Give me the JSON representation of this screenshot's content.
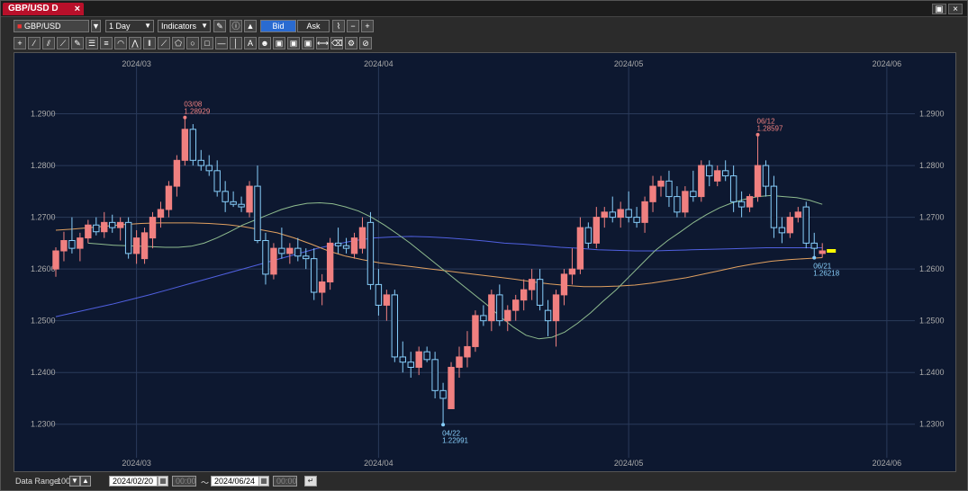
{
  "window": {
    "tab_title": "GBP/USD D",
    "tab_close": "×",
    "btn_restore": "▣",
    "btn_close": "×"
  },
  "toolbar": {
    "symbol": "GBP/USD",
    "timeframe": "1 Day",
    "indicators": "Indicators",
    "bid": "Bid",
    "ask": "Ask"
  },
  "drawing_tools": [
    "crosshair-icon",
    "trendline-icon",
    "channel-icon",
    "ray-icon",
    "pencil-icon",
    "horizontal-lines-icon",
    "fib-lines-icon",
    "arc-icon",
    "pitchfork-icon",
    "vertical-lines-icon",
    "fan-icon",
    "pentagon-icon",
    "circle-icon",
    "rectangle-icon",
    "hline-icon",
    "vline-icon",
    "text-icon",
    "symbol-icon",
    "lock-icon",
    "copy-icon",
    "paste-icon",
    "measure-icon",
    "eraser-icon",
    "settings-icon",
    "delete-icon"
  ],
  "chart": {
    "x_labels": [
      {
        "text": "2024/03",
        "day": 10
      },
      {
        "text": "2024/04",
        "day": 40
      },
      {
        "text": "2024/05",
        "day": 71
      },
      {
        "text": "2024/06",
        "day": 103
      }
    ],
    "y_ticks": [
      "1.2900",
      "1.2800",
      "1.2700",
      "1.2600",
      "1.2500",
      "1.2400",
      "1.2300"
    ],
    "annotations": [
      {
        "date": "03/08",
        "price": "1.28929"
      },
      {
        "date": "06/12",
        "price": "1.28597"
      },
      {
        "date": "04/22",
        "price": "1.22991"
      },
      {
        "date": "06/21",
        "price": "1.26218"
      }
    ],
    "colors": {
      "up": "#f08080",
      "down": "#87cefa",
      "ma_short": "#8fbc8f",
      "ma_mid": "#e0a060",
      "ma_long": "#5060e0",
      "current": "#ffff00"
    }
  },
  "chart_data": {
    "type": "candlestick",
    "ylim": [
      1.227,
      1.3
    ],
    "candles": [
      [
        1.26,
        1.2642,
        1.2585,
        1.2635
      ],
      [
        1.2635,
        1.2672,
        1.2615,
        1.2655
      ],
      [
        1.2655,
        1.27,
        1.263,
        1.264
      ],
      [
        1.264,
        1.267,
        1.2615,
        1.266
      ],
      [
        1.266,
        1.2695,
        1.265,
        1.2685
      ],
      [
        1.2685,
        1.27,
        1.2665,
        1.2672
      ],
      [
        1.2672,
        1.271,
        1.266,
        1.269
      ],
      [
        1.269,
        1.2705,
        1.267,
        1.268
      ],
      [
        1.268,
        1.27,
        1.2655,
        1.269
      ],
      [
        1.269,
        1.27,
        1.262,
        1.263
      ],
      [
        1.263,
        1.2675,
        1.261,
        1.266
      ],
      [
        1.262,
        1.268,
        1.261,
        1.267
      ],
      [
        1.266,
        1.271,
        1.264,
        1.27
      ],
      [
        1.27,
        1.273,
        1.268,
        1.2715
      ],
      [
        1.2715,
        1.277,
        1.27,
        1.276
      ],
      [
        1.276,
        1.282,
        1.274,
        1.281
      ],
      [
        1.281,
        1.2893,
        1.28,
        1.287
      ],
      [
        1.287,
        1.288,
        1.28,
        1.281
      ],
      [
        1.281,
        1.283,
        1.279,
        1.28
      ],
      [
        1.28,
        1.282,
        1.278,
        1.279
      ],
      [
        1.279,
        1.281,
        1.274,
        1.275
      ],
      [
        1.275,
        1.277,
        1.271,
        1.273
      ],
      [
        1.273,
        1.275,
        1.272,
        1.2725
      ],
      [
        1.2725,
        1.274,
        1.271,
        1.272
      ],
      [
        1.271,
        1.277,
        1.27,
        1.276
      ],
      [
        1.276,
        1.28,
        1.265,
        1.2655
      ],
      [
        1.2655,
        1.267,
        1.257,
        1.259
      ],
      [
        1.259,
        1.265,
        1.258,
        1.264
      ],
      [
        1.264,
        1.268,
        1.262,
        1.263
      ],
      [
        1.263,
        1.265,
        1.261,
        1.264
      ],
      [
        1.264,
        1.266,
        1.2615,
        1.2625
      ],
      [
        1.2625,
        1.264,
        1.26,
        1.262
      ],
      [
        1.262,
        1.264,
        1.254,
        1.2555
      ],
      [
        1.2555,
        1.259,
        1.253,
        1.2575
      ],
      [
        1.2575,
        1.266,
        1.256,
        1.265
      ],
      [
        1.265,
        1.268,
        1.263,
        1.2645
      ],
      [
        1.2645,
        1.266,
        1.263,
        1.264
      ],
      [
        1.263,
        1.267,
        1.262,
        1.266
      ],
      [
        1.264,
        1.27,
        1.263,
        1.268
      ],
      [
        1.269,
        1.271,
        1.256,
        1.257
      ],
      [
        1.257,
        1.26,
        1.251,
        1.253
      ],
      [
        1.253,
        1.256,
        1.25,
        1.255
      ],
      [
        1.255,
        1.256,
        1.242,
        1.243
      ],
      [
        1.243,
        1.246,
        1.24,
        1.242
      ],
      [
        1.242,
        1.244,
        1.239,
        1.241
      ],
      [
        1.241,
        1.245,
        1.2395,
        1.244
      ],
      [
        1.244,
        1.245,
        1.242,
        1.2425
      ],
      [
        1.2425,
        1.244,
        1.235,
        1.2365
      ],
      [
        1.2365,
        1.238,
        1.2299,
        1.235
      ],
      [
        1.233,
        1.242,
        1.233,
        1.241
      ],
      [
        1.241,
        1.245,
        1.239,
        1.243
      ],
      [
        1.243,
        1.248,
        1.241,
        1.245
      ],
      [
        1.245,
        1.252,
        1.244,
        1.251
      ],
      [
        1.251,
        1.253,
        1.249,
        1.25
      ],
      [
        1.25,
        1.256,
        1.248,
        1.255
      ],
      [
        1.255,
        1.257,
        1.249,
        1.25
      ],
      [
        1.25,
        1.253,
        1.248,
        1.252
      ],
      [
        1.252,
        1.255,
        1.25,
        1.254
      ],
      [
        1.254,
        1.258,
        1.252,
        1.256
      ],
      [
        1.256,
        1.26,
        1.254,
        1.258
      ],
      [
        1.258,
        1.26,
        1.252,
        1.253
      ],
      [
        1.252,
        1.254,
        1.247,
        1.25
      ],
      [
        1.25,
        1.256,
        1.245,
        1.255
      ],
      [
        1.255,
        1.26,
        1.253,
        1.259
      ],
      [
        1.259,
        1.264,
        1.257,
        1.26
      ],
      [
        1.26,
        1.27,
        1.259,
        1.268
      ],
      [
        1.268,
        1.269,
        1.264,
        1.265
      ],
      [
        1.265,
        1.272,
        1.264,
        1.27
      ],
      [
        1.27,
        1.272,
        1.268,
        1.271
      ],
      [
        1.271,
        1.274,
        1.269,
        1.27
      ],
      [
        1.27,
        1.273,
        1.268,
        1.2715
      ],
      [
        1.2715,
        1.275,
        1.269,
        1.27
      ],
      [
        1.27,
        1.272,
        1.268,
        1.269
      ],
      [
        1.269,
        1.274,
        1.267,
        1.273
      ],
      [
        1.273,
        1.278,
        1.271,
        1.276
      ],
      [
        1.276,
        1.278,
        1.274,
        1.277
      ],
      [
        1.277,
        1.279,
        1.272,
        1.274
      ],
      [
        1.274,
        1.276,
        1.27,
        1.271
      ],
      [
        1.271,
        1.276,
        1.27,
        1.275
      ],
      [
        1.275,
        1.279,
        1.273,
        1.274
      ],
      [
        1.274,
        1.281,
        1.273,
        1.28
      ],
      [
        1.28,
        1.281,
        1.276,
        1.278
      ],
      [
        1.277,
        1.28,
        1.276,
        1.279
      ],
      [
        1.279,
        1.281,
        1.277,
        1.278
      ],
      [
        1.278,
        1.28,
        1.271,
        1.273
      ],
      [
        1.273,
        1.275,
        1.27,
        1.272
      ],
      [
        1.272,
        1.2745,
        1.271,
        1.274
      ],
      [
        1.274,
        1.286,
        1.273,
        1.28
      ],
      [
        1.28,
        1.281,
        1.274,
        1.276
      ],
      [
        1.276,
        1.278,
        1.266,
        1.268
      ],
      [
        1.268,
        1.27,
        1.265,
        1.267
      ],
      [
        1.267,
        1.271,
        1.266,
        1.27
      ],
      [
        1.27,
        1.272,
        1.269,
        1.271
      ],
      [
        1.272,
        1.273,
        1.264,
        1.265
      ],
      [
        1.265,
        1.267,
        1.2622,
        1.264
      ],
      [
        1.263,
        1.265,
        1.2622,
        1.2635
      ]
    ],
    "ma_short": [
      1.265,
      1.2648,
      1.2646,
      1.2645,
      1.2644,
      1.2643,
      1.2642,
      1.2642,
      1.2644,
      1.265,
      1.266,
      1.2672,
      1.2685,
      1.2695,
      1.2705,
      1.2715,
      1.2722,
      1.2727,
      1.2728,
      1.2726,
      1.272,
      1.2712,
      1.27,
      1.2685,
      1.2668,
      1.265,
      1.263,
      1.261,
      1.259,
      1.257,
      1.255,
      1.253,
      1.2508,
      1.2488,
      1.2472,
      1.2465,
      1.2468,
      1.2478,
      1.2495,
      1.2515,
      1.2538,
      1.256,
      1.2585,
      1.261,
      1.2635,
      1.2655,
      1.2672,
      1.269,
      1.2705,
      1.2718,
      1.2728,
      1.2735,
      1.274,
      1.2742,
      1.274,
      1.2738,
      1.2733,
      1.2725
    ],
    "ma_short_start": 0,
    "ma_mid": [
      1.2675,
      1.2677,
      1.268,
      1.2683,
      1.2686,
      1.2688,
      1.2689,
      1.2689,
      1.2689,
      1.2688,
      1.2686,
      1.2682,
      1.2676,
      1.267,
      1.266,
      1.2648,
      1.2635,
      1.2625,
      1.2618,
      1.2612,
      1.2608,
      1.2604,
      1.26,
      1.2596,
      1.2592,
      1.2588,
      1.2584,
      1.258,
      1.2575,
      1.2571,
      1.2568,
      1.2566,
      1.2566,
      1.2567,
      1.2569,
      1.2573,
      1.2578,
      1.2583,
      1.259,
      1.2597,
      1.2604,
      1.261,
      1.2615,
      1.2618,
      1.262,
      1.2622
    ],
    "ma_long": [
      1.2508,
      1.2516,
      1.2524,
      1.2532,
      1.2541,
      1.255,
      1.256,
      1.257,
      1.258,
      1.259,
      1.26,
      1.261,
      1.262,
      1.263,
      1.264,
      1.2648,
      1.2655,
      1.266,
      1.2662,
      1.2663,
      1.2662,
      1.266,
      1.2657,
      1.2654,
      1.265,
      1.2648,
      1.2645,
      1.2642,
      1.264,
      1.2637,
      1.2636,
      1.2635,
      1.2635,
      1.2636,
      1.2637,
      1.2638,
      1.2639,
      1.264,
      1.2641,
      1.2641,
      1.2641,
      1.2641
    ]
  },
  "footer": {
    "data_range_label": "Data Range:",
    "data_range_value": "100",
    "start_date": "2024/02/20",
    "start_time": "00:00",
    "tilde": "〜",
    "end_date": "2024/06/24",
    "end_time": "00:00"
  }
}
